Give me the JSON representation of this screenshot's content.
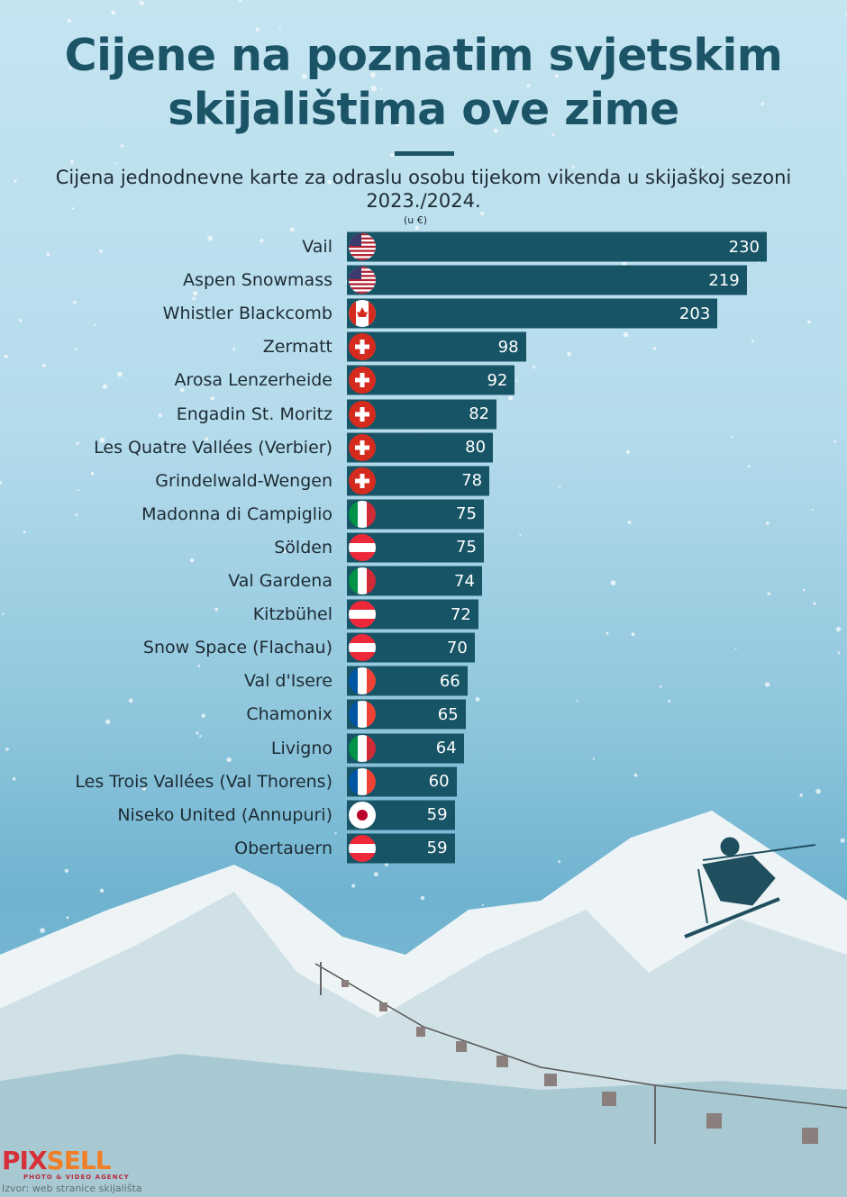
{
  "title": "Cijene na poznatim svjetskim skijalištima ove zime",
  "subtitle": "Cijena jednodnevne karte za odraslu osobu tijekom vikenda u skijaškoj sezoni 2023./2024.",
  "unit": "(u €)",
  "logo": {
    "part1": "PIX",
    "part2": "SELL",
    "tagline": "PHOTO & VIDEO AGENCY"
  },
  "source": "Izvor: web stranice skijališta",
  "colors": {
    "bar": "#175466",
    "title": "#1c5467"
  },
  "chart_data": {
    "type": "bar",
    "orientation": "horizontal",
    "xlim": [
      0,
      230
    ],
    "categories": [
      "Vail",
      "Aspen Snowmass",
      "Whistler Blackcomb",
      "Zermatt",
      "Arosa Lenzerheide",
      "Engadin St. Moritz",
      "Les Quatre Vallées (Verbier)",
      "Grindelwald-Wengen",
      "Madonna di Campiglio",
      "Sölden",
      "Val Gardena",
      "Kitzbühel",
      "Snow Space (Flachau)",
      "Val d'Isere",
      "Chamonix",
      "Livigno",
      "Les Trois Vallées (Val Thorens)",
      "Niseko United (Annupuri)",
      "Obertauern"
    ],
    "values": [
      230,
      219,
      203,
      98,
      92,
      82,
      80,
      78,
      75,
      75,
      74,
      72,
      70,
      66,
      65,
      64,
      60,
      59,
      59
    ],
    "flags": [
      "us",
      "us",
      "ca",
      "ch",
      "ch",
      "ch",
      "ch",
      "ch",
      "it",
      "at",
      "it",
      "at",
      "at",
      "fr",
      "fr",
      "it",
      "fr",
      "jp",
      "at"
    ]
  }
}
